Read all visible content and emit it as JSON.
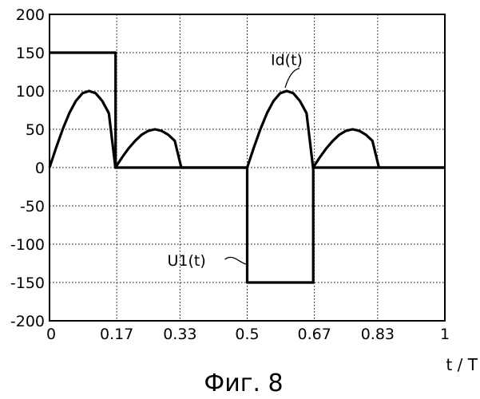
{
  "chart_data": {
    "type": "line",
    "title": "",
    "xlabel": "t / T",
    "ylabel": "",
    "xlim": [
      0,
      1
    ],
    "ylim": [
      -200,
      200
    ],
    "grid": true,
    "x_ticks": [
      0,
      0.17,
      0.33,
      0.5,
      0.67,
      0.83,
      1
    ],
    "x_tick_labels": [
      "0",
      "0.17",
      "0.33",
      "0.5",
      "0.67",
      "0.83",
      "1"
    ],
    "y_ticks": [
      200,
      150,
      100,
      50,
      0,
      -50,
      -100,
      -150,
      -200
    ],
    "y_tick_labels": [
      "200",
      "150",
      "100",
      "50",
      "0",
      "-50",
      "-100",
      "-150",
      "-200"
    ],
    "series": [
      {
        "name": "Id(t)",
        "x": [
          0,
          0.0167,
          0.0333,
          0.05,
          0.0667,
          0.0833,
          0.1,
          0.1167,
          0.1333,
          0.15,
          0.1667,
          0.1833,
          0.2,
          0.2167,
          0.2333,
          0.25,
          0.2667,
          0.2833,
          0.3,
          0.3167,
          0.3333,
          0.5,
          0.5167,
          0.5333,
          0.55,
          0.5667,
          0.5833,
          0.6,
          0.6167,
          0.6333,
          0.65,
          0.6667,
          0.6833,
          0.7,
          0.7167,
          0.7333,
          0.75,
          0.7667,
          0.7833,
          0.8,
          0.8167,
          0.8333,
          1
        ],
        "y": [
          0,
          26,
          50,
          71,
          87,
          97,
          100,
          97,
          87,
          71,
          0,
          13,
          25,
          35,
          43,
          48,
          50,
          48,
          43,
          35,
          0,
          0,
          26,
          50,
          71,
          87,
          97,
          100,
          97,
          87,
          71,
          0,
          13,
          25,
          35,
          43,
          48,
          50,
          48,
          43,
          35,
          0,
          0
        ],
        "color": "#000000"
      },
      {
        "name": "U1(t)",
        "x": [
          0,
          0.167,
          0.167,
          0.5,
          0.5,
          0.667,
          0.667,
          1
        ],
        "y": [
          150,
          150,
          0,
          0,
          -150,
          -150,
          0,
          0
        ],
        "color": "#000000"
      }
    ]
  },
  "figure": {
    "caption": "Фиг. 8"
  }
}
